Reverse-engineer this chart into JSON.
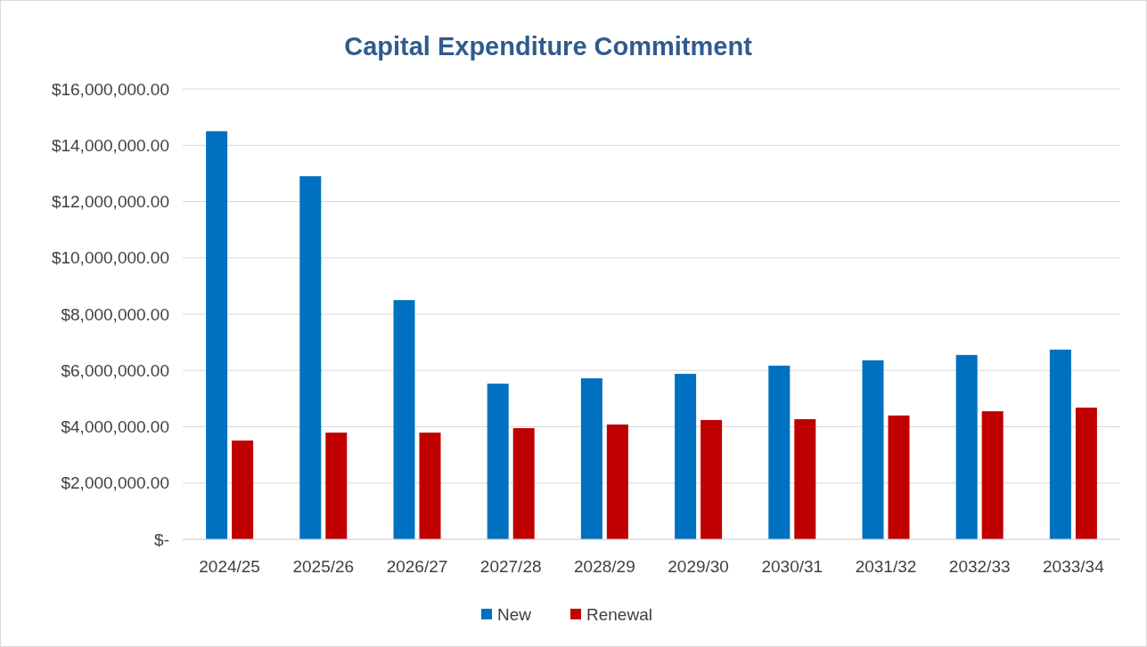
{
  "chart_data": {
    "type": "bar",
    "title": "Capital Expenditure Commitment",
    "categories": [
      "2024/25",
      "2025/26",
      "2026/27",
      "2027/28",
      "2028/29",
      "2029/30",
      "2030/31",
      "2031/32",
      "2032/33",
      "2033/34"
    ],
    "series": [
      {
        "name": "New",
        "color": "#0070c0",
        "values": [
          14500000,
          12900000,
          8500000,
          5530000,
          5720000,
          5880000,
          6170000,
          6360000,
          6550000,
          6740000
        ]
      },
      {
        "name": "Renewal",
        "color": "#c00000",
        "values": [
          3510000,
          3790000,
          3790000,
          3950000,
          4080000,
          4240000,
          4270000,
          4400000,
          4550000,
          4680000
        ]
      }
    ],
    "ylim": [
      0,
      16000000
    ],
    "yticks": [
      {
        "value": 0,
        "label": "$-"
      },
      {
        "value": 2000000,
        "label": "$2,000,000.00"
      },
      {
        "value": 4000000,
        "label": "$4,000,000.00"
      },
      {
        "value": 6000000,
        "label": "$6,000,000.00"
      },
      {
        "value": 8000000,
        "label": "$8,000,000.00"
      },
      {
        "value": 10000000,
        "label": "$10,000,000.00"
      },
      {
        "value": 12000000,
        "label": "$12,000,000.00"
      },
      {
        "value": 14000000,
        "label": "$14,000,000.00"
      },
      {
        "value": 16000000,
        "label": "$16,000,000.00"
      }
    ],
    "grid": "y",
    "legend": "bottom"
  }
}
